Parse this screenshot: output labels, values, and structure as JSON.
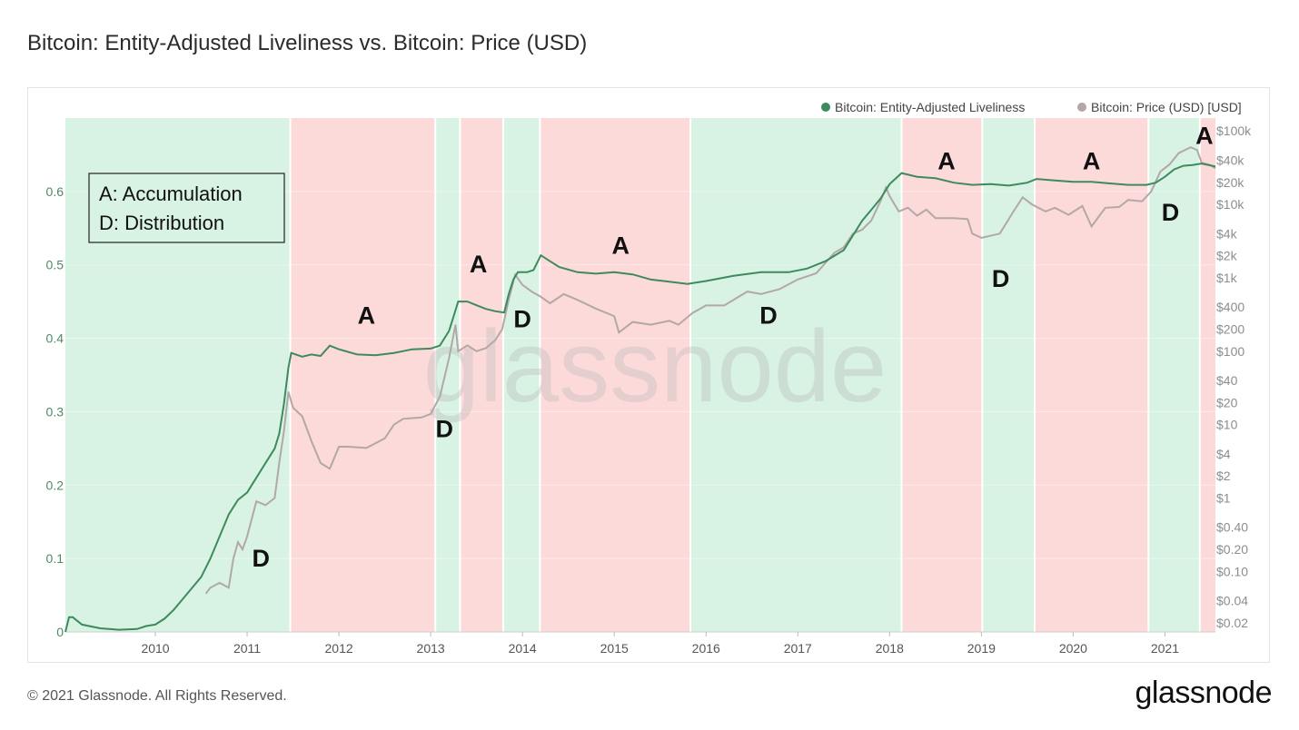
{
  "title": "Bitcoin: Entity-Adjusted Liveliness vs. Bitcoin: Price (USD)",
  "footer": "© 2021 Glassnode. All Rights Reserved.",
  "brand": "glassnode",
  "watermark": "glassnode",
  "chart_data": {
    "type": "line",
    "x_ticks": [
      "2010",
      "2011",
      "2012",
      "2013",
      "2014",
      "2015",
      "2016",
      "2017",
      "2018",
      "2019",
      "2020",
      "2021"
    ],
    "y_left_ticks": [
      "0",
      "0.1",
      "0.2",
      "0.3",
      "0.4",
      "0.5",
      "0.6"
    ],
    "y_left_range": [
      0,
      0.7
    ],
    "y_right_scale": "log",
    "y_right_ticks": [
      "$0.02",
      "$0.04",
      "$0.10",
      "$0.20",
      "$0.40",
      "$1",
      "$2",
      "$4",
      "$10",
      "$20",
      "$40",
      "$100",
      "$200",
      "$400",
      "$1k",
      "$2k",
      "$4k",
      "$10k",
      "$20k",
      "$40k",
      "$100k"
    ],
    "y_right_tick_values": [
      0.02,
      0.04,
      0.1,
      0.2,
      0.4,
      1,
      2,
      4,
      10,
      20,
      40,
      100,
      200,
      400,
      1000,
      2000,
      4000,
      10000,
      20000,
      40000,
      100000
    ],
    "y_right_range": [
      0.015,
      150000
    ],
    "x_range": [
      2009.02,
      2021.55
    ],
    "legend": [
      {
        "name": "Bitcoin: Entity-Adjusted Liveliness",
        "color": "#3f8a5c",
        "axis": "left"
      },
      {
        "name": "Bitcoin: Price (USD) [USD]",
        "color": "#b3a7a7",
        "axis": "right"
      }
    ],
    "legend_placement": "top-right",
    "regions": [
      {
        "start": 2009.02,
        "end": 2011.47,
        "phase": "green"
      },
      {
        "start": 2011.47,
        "end": 2013.05,
        "phase": "red"
      },
      {
        "start": 2013.05,
        "end": 2013.32,
        "phase": "green"
      },
      {
        "start": 2013.32,
        "end": 2013.79,
        "phase": "red"
      },
      {
        "start": 2013.79,
        "end": 2014.19,
        "phase": "green"
      },
      {
        "start": 2014.19,
        "end": 2015.83,
        "phase": "red"
      },
      {
        "start": 2015.83,
        "end": 2018.13,
        "phase": "green"
      },
      {
        "start": 2018.13,
        "end": 2019.01,
        "phase": "red"
      },
      {
        "start": 2019.01,
        "end": 2019.58,
        "phase": "green"
      },
      {
        "start": 2019.58,
        "end": 2020.82,
        "phase": "red"
      },
      {
        "start": 2020.82,
        "end": 2021.38,
        "phase": "green"
      },
      {
        "start": 2021.38,
        "end": 2021.55,
        "phase": "red"
      }
    ],
    "region_colors": {
      "green": "#d8f3e3",
      "red": "#fddada"
    },
    "series": [
      {
        "name": "Bitcoin: Entity-Adjusted Liveliness",
        "axis": "left",
        "color": "#3f8a5c",
        "points": [
          [
            2009.02,
            0.0
          ],
          [
            2009.06,
            0.02
          ],
          [
            2009.1,
            0.02
          ],
          [
            2009.2,
            0.01
          ],
          [
            2009.4,
            0.005
          ],
          [
            2009.6,
            0.003
          ],
          [
            2009.8,
            0.004
          ],
          [
            2009.9,
            0.008
          ],
          [
            2010.0,
            0.01
          ],
          [
            2010.1,
            0.018
          ],
          [
            2010.2,
            0.03
          ],
          [
            2010.3,
            0.045
          ],
          [
            2010.4,
            0.06
          ],
          [
            2010.5,
            0.075
          ],
          [
            2010.6,
            0.1
          ],
          [
            2010.7,
            0.13
          ],
          [
            2010.8,
            0.16
          ],
          [
            2010.9,
            0.18
          ],
          [
            2011.0,
            0.19
          ],
          [
            2011.05,
            0.2
          ],
          [
            2011.1,
            0.21
          ],
          [
            2011.2,
            0.23
          ],
          [
            2011.3,
            0.25
          ],
          [
            2011.35,
            0.27
          ],
          [
            2011.4,
            0.31
          ],
          [
            2011.45,
            0.36
          ],
          [
            2011.48,
            0.38
          ],
          [
            2011.6,
            0.375
          ],
          [
            2011.7,
            0.378
          ],
          [
            2011.8,
            0.376
          ],
          [
            2011.9,
            0.39
          ],
          [
            2012.0,
            0.385
          ],
          [
            2012.2,
            0.378
          ],
          [
            2012.4,
            0.377
          ],
          [
            2012.6,
            0.38
          ],
          [
            2012.8,
            0.385
          ],
          [
            2013.0,
            0.386
          ],
          [
            2013.1,
            0.39
          ],
          [
            2013.2,
            0.41
          ],
          [
            2013.25,
            0.43
          ],
          [
            2013.3,
            0.45
          ],
          [
            2013.4,
            0.45
          ],
          [
            2013.5,
            0.445
          ],
          [
            2013.6,
            0.44
          ],
          [
            2013.7,
            0.437
          ],
          [
            2013.8,
            0.435
          ],
          [
            2013.85,
            0.46
          ],
          [
            2013.9,
            0.48
          ],
          [
            2013.95,
            0.49
          ],
          [
            2014.05,
            0.49
          ],
          [
            2014.12,
            0.493
          ],
          [
            2014.2,
            0.513
          ],
          [
            2014.3,
            0.505
          ],
          [
            2014.4,
            0.497
          ],
          [
            2014.6,
            0.49
          ],
          [
            2014.8,
            0.488
          ],
          [
            2015.0,
            0.49
          ],
          [
            2015.2,
            0.487
          ],
          [
            2015.4,
            0.48
          ],
          [
            2015.6,
            0.477
          ],
          [
            2015.8,
            0.474
          ],
          [
            2016.0,
            0.478
          ],
          [
            2016.3,
            0.485
          ],
          [
            2016.6,
            0.49
          ],
          [
            2016.9,
            0.49
          ],
          [
            2017.1,
            0.495
          ],
          [
            2017.3,
            0.505
          ],
          [
            2017.5,
            0.52
          ],
          [
            2017.6,
            0.54
          ],
          [
            2017.7,
            0.56
          ],
          [
            2017.8,
            0.575
          ],
          [
            2017.9,
            0.59
          ],
          [
            2018.0,
            0.61
          ],
          [
            2018.13,
            0.625
          ],
          [
            2018.3,
            0.62
          ],
          [
            2018.5,
            0.618
          ],
          [
            2018.7,
            0.612
          ],
          [
            2018.9,
            0.609
          ],
          [
            2019.1,
            0.61
          ],
          [
            2019.3,
            0.608
          ],
          [
            2019.5,
            0.612
          ],
          [
            2019.6,
            0.617
          ],
          [
            2019.8,
            0.615
          ],
          [
            2020.0,
            0.613
          ],
          [
            2020.2,
            0.613
          ],
          [
            2020.4,
            0.611
          ],
          [
            2020.6,
            0.609
          ],
          [
            2020.8,
            0.609
          ],
          [
            2020.9,
            0.612
          ],
          [
            2021.0,
            0.62
          ],
          [
            2021.1,
            0.63
          ],
          [
            2021.2,
            0.635
          ],
          [
            2021.3,
            0.636
          ],
          [
            2021.4,
            0.638
          ],
          [
            2021.55,
            0.634
          ]
        ]
      },
      {
        "name": "Bitcoin: Price (USD) [USD]",
        "axis": "right",
        "color": "#b3a7a7",
        "points": [
          [
            2010.55,
            0.05
          ],
          [
            2010.6,
            0.06
          ],
          [
            2010.7,
            0.07
          ],
          [
            2010.8,
            0.06
          ],
          [
            2010.85,
            0.15
          ],
          [
            2010.9,
            0.25
          ],
          [
            2010.95,
            0.2
          ],
          [
            2011.0,
            0.3
          ],
          [
            2011.1,
            0.9
          ],
          [
            2011.15,
            0.85
          ],
          [
            2011.2,
            0.8
          ],
          [
            2011.3,
            1.0
          ],
          [
            2011.35,
            3.0
          ],
          [
            2011.4,
            8.0
          ],
          [
            2011.45,
            28.0
          ],
          [
            2011.5,
            17.0
          ],
          [
            2011.6,
            13.0
          ],
          [
            2011.7,
            6.0
          ],
          [
            2011.8,
            3.0
          ],
          [
            2011.9,
            2.5
          ],
          [
            2012.0,
            5.0
          ],
          [
            2012.1,
            5.0
          ],
          [
            2012.3,
            4.8
          ],
          [
            2012.5,
            6.5
          ],
          [
            2012.6,
            10.0
          ],
          [
            2012.7,
            12.0
          ],
          [
            2012.9,
            12.5
          ],
          [
            2013.0,
            14.0
          ],
          [
            2013.1,
            24.0
          ],
          [
            2013.2,
            80.0
          ],
          [
            2013.27,
            230.0
          ],
          [
            2013.3,
            100.0
          ],
          [
            2013.4,
            120.0
          ],
          [
            2013.5,
            100.0
          ],
          [
            2013.6,
            110.0
          ],
          [
            2013.7,
            140.0
          ],
          [
            2013.78,
            200.0
          ],
          [
            2013.85,
            500.0
          ],
          [
            2013.92,
            1100.0
          ],
          [
            2014.0,
            800.0
          ],
          [
            2014.1,
            650.0
          ],
          [
            2014.2,
            550.0
          ],
          [
            2014.3,
            450.0
          ],
          [
            2014.45,
            600.0
          ],
          [
            2014.6,
            500.0
          ],
          [
            2014.8,
            380.0
          ],
          [
            2015.0,
            300.0
          ],
          [
            2015.05,
            180.0
          ],
          [
            2015.2,
            250.0
          ],
          [
            2015.4,
            230.0
          ],
          [
            2015.6,
            260.0
          ],
          [
            2015.7,
            230.0
          ],
          [
            2015.85,
            330.0
          ],
          [
            2016.0,
            420.0
          ],
          [
            2016.2,
            420.0
          ],
          [
            2016.45,
            650.0
          ],
          [
            2016.6,
            600.0
          ],
          [
            2016.8,
            700.0
          ],
          [
            2017.0,
            950.0
          ],
          [
            2017.2,
            1150.0
          ],
          [
            2017.4,
            2200.0
          ],
          [
            2017.5,
            2600.0
          ],
          [
            2017.6,
            4000.0
          ],
          [
            2017.7,
            4500.0
          ],
          [
            2017.8,
            6000.0
          ],
          [
            2017.9,
            11000.0
          ],
          [
            2017.96,
            17000.0
          ],
          [
            2018.0,
            13000.0
          ],
          [
            2018.1,
            8000.0
          ],
          [
            2018.2,
            9000.0
          ],
          [
            2018.3,
            7000.0
          ],
          [
            2018.4,
            8500.0
          ],
          [
            2018.5,
            6500.0
          ],
          [
            2018.7,
            6500.0
          ],
          [
            2018.85,
            6300.0
          ],
          [
            2018.9,
            4000.0
          ],
          [
            2019.0,
            3500.0
          ],
          [
            2019.2,
            4000.0
          ],
          [
            2019.35,
            8000.0
          ],
          [
            2019.45,
            12500.0
          ],
          [
            2019.55,
            10000.0
          ],
          [
            2019.7,
            8000.0
          ],
          [
            2019.8,
            9000.0
          ],
          [
            2019.95,
            7200.0
          ],
          [
            2020.1,
            9500.0
          ],
          [
            2020.2,
            5000.0
          ],
          [
            2020.35,
            9000.0
          ],
          [
            2020.5,
            9200.0
          ],
          [
            2020.6,
            11500.0
          ],
          [
            2020.75,
            11000.0
          ],
          [
            2020.85,
            15000.0
          ],
          [
            2020.95,
            28000.0
          ],
          [
            2021.05,
            35000.0
          ],
          [
            2021.15,
            50000.0
          ],
          [
            2021.28,
            60000.0
          ],
          [
            2021.35,
            55000.0
          ],
          [
            2021.4,
            37000.0
          ],
          [
            2021.5,
            34000.0
          ],
          [
            2021.55,
            31000.0
          ]
        ]
      }
    ],
    "annotations": [
      {
        "text": "D",
        "x": 2011.15,
        "phase": 0.089,
        "unit": "liveliness"
      },
      {
        "text": "A",
        "x": 2012.3,
        "y": 0.42,
        "unit": "liveliness"
      },
      {
        "text": "D",
        "x": 2013.15,
        "y": 0.265,
        "unit": "liveliness"
      },
      {
        "text": "A",
        "x": 2013.52,
        "y": 0.49,
        "unit": "liveliness"
      },
      {
        "text": "D",
        "x": 2014.0,
        "y": 0.415,
        "unit": "liveliness"
      },
      {
        "text": "A",
        "x": 2015.07,
        "y": 0.515,
        "unit": "liveliness"
      },
      {
        "text": "D",
        "x": 2016.68,
        "y": 0.42,
        "unit": "liveliness"
      },
      {
        "text": "A",
        "x": 2018.62,
        "y": 0.63,
        "unit": "liveliness"
      },
      {
        "text": "D",
        "x": 2019.21,
        "y": 0.47,
        "unit": "liveliness"
      },
      {
        "text": "A",
        "x": 2020.2,
        "y": 0.63,
        "unit": "liveliness"
      },
      {
        "text": "D",
        "x": 2021.06,
        "y": 0.56,
        "unit": "liveliness"
      },
      {
        "text": "A",
        "x": 2021.43,
        "y": 0.665,
        "unit": "liveliness"
      }
    ],
    "key_box": [
      "A: Accumulation",
      "D: Distribution"
    ]
  }
}
